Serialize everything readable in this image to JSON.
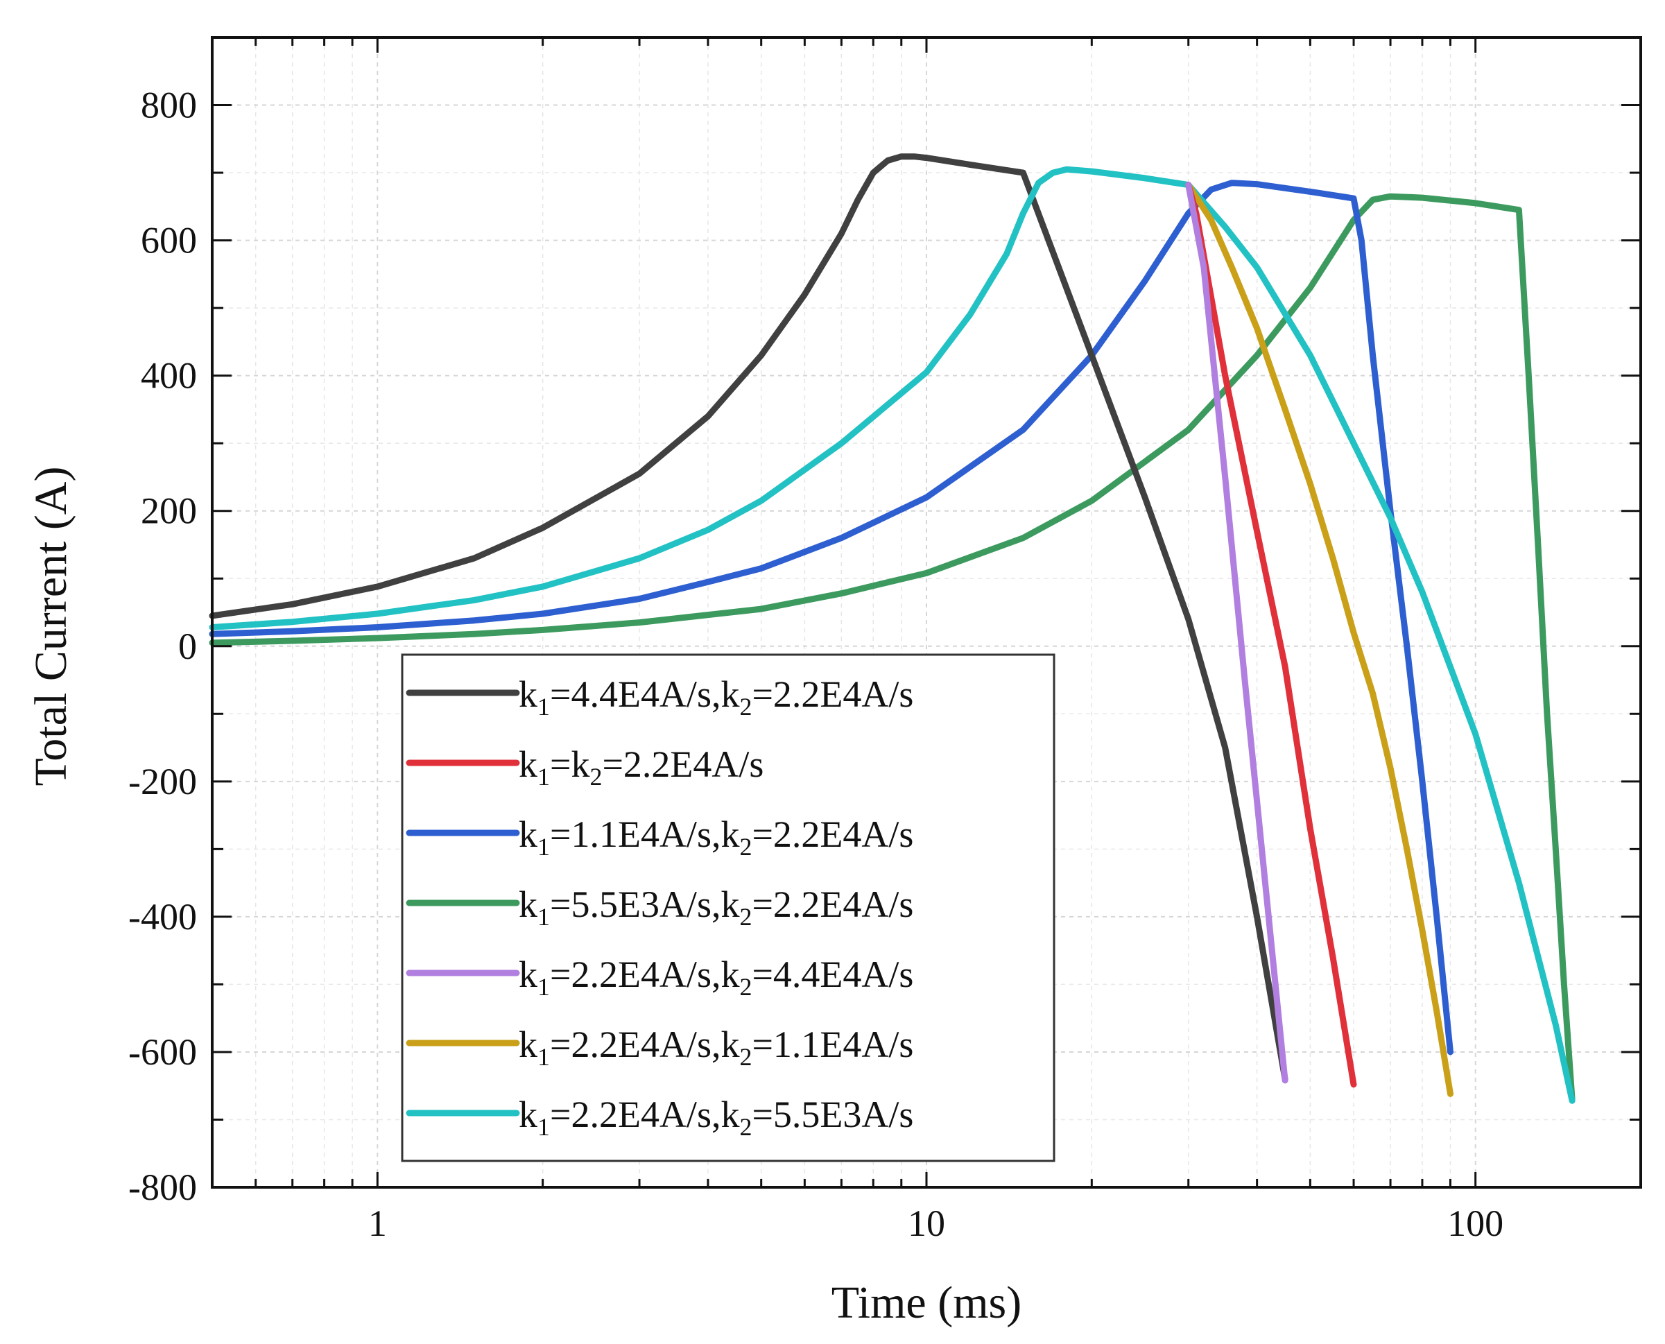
{
  "chart_data": {
    "type": "line",
    "xscale": "log",
    "xlabel": "Time (ms)",
    "ylabel": "Total Current (A)",
    "xlim": [
      0.5,
      200
    ],
    "ylim": [
      -800,
      900
    ],
    "xticks": [
      1,
      10,
      100
    ],
    "xtick_labels": [
      "1",
      "10",
      "100"
    ],
    "yticks": [
      -800,
      -600,
      -400,
      -200,
      0,
      200,
      400,
      600,
      800
    ],
    "ytick_labels": [
      "-800",
      "-600",
      "-400",
      "-200",
      "0",
      "200",
      "400",
      "600",
      "800"
    ],
    "grid": true,
    "legend_position": "lower-left",
    "series": [
      {
        "name": "k1=4.4E4A/s,k2=2.2E4A/s",
        "label_parts": [
          [
            "k",
            ""
          ],
          [
            "1",
            "sub"
          ],
          [
            "=4.4E4A/s,k",
            ""
          ],
          [
            "2",
            "sub"
          ],
          [
            "=2.2E4A/s",
            ""
          ]
        ],
        "color": "#404040",
        "x": [
          0.5,
          0.7,
          1,
          1.5,
          2,
          3,
          4,
          5,
          6,
          7,
          7.5,
          8,
          8.5,
          9,
          9.5,
          10,
          12,
          15,
          20,
          25,
          30,
          35,
          40,
          45
        ],
        "y": [
          45,
          62,
          88,
          130,
          175,
          255,
          340,
          430,
          520,
          610,
          660,
          700,
          718,
          724,
          724,
          722,
          712,
          700,
          430,
          220,
          40,
          -150,
          -400,
          -640
        ]
      },
      {
        "name": "k1=k2=2.2E4A/s",
        "label_parts": [
          [
            "k",
            ""
          ],
          [
            "1",
            "sub"
          ],
          [
            "=k",
            ""
          ],
          [
            "2",
            "sub"
          ],
          [
            "=2.2E4A/s",
            ""
          ]
        ],
        "color": "#e0303a",
        "x": [
          30,
          31,
          35,
          40,
          45,
          50,
          55,
          60
        ],
        "y": [
          682,
          640,
          400,
          170,
          -30,
          -270,
          -460,
          -648
        ]
      },
      {
        "name": "k1=1.1E4A/s,k2=2.2E4A/s",
        "label_parts": [
          [
            "k",
            ""
          ],
          [
            "1",
            "sub"
          ],
          [
            "=1.1E4A/s,k",
            ""
          ],
          [
            "2",
            "sub"
          ],
          [
            "=2.2E4A/s",
            ""
          ]
        ],
        "color": "#2e5fd0",
        "x": [
          0.5,
          0.7,
          1,
          1.5,
          2,
          3,
          4,
          5,
          7,
          10,
          15,
          20,
          25,
          30,
          33,
          36,
          40,
          50,
          60,
          62,
          65,
          70,
          75,
          80,
          85,
          90
        ],
        "y": [
          18,
          22,
          28,
          38,
          48,
          70,
          95,
          115,
          160,
          220,
          320,
          430,
          540,
          640,
          675,
          685,
          683,
          672,
          662,
          600,
          430,
          200,
          0,
          -200,
          -400,
          -600
        ]
      },
      {
        "name": "k1=5.5E3A/s,k2=2.2E4A/s",
        "label_parts": [
          [
            "k",
            ""
          ],
          [
            "1",
            "sub"
          ],
          [
            "=5.5E3A/s,k",
            ""
          ],
          [
            "2",
            "sub"
          ],
          [
            "=2.2E4A/s",
            ""
          ]
        ],
        "color": "#3c9a5f",
        "x": [
          0.5,
          0.7,
          1,
          1.5,
          2,
          3,
          5,
          7,
          10,
          15,
          20,
          30,
          40,
          50,
          60,
          65,
          70,
          80,
          100,
          120,
          125,
          130,
          135,
          140,
          145,
          150
        ],
        "y": [
          5,
          8,
          12,
          18,
          24,
          35,
          55,
          78,
          108,
          160,
          215,
          320,
          430,
          530,
          630,
          660,
          665,
          663,
          655,
          645,
          400,
          150,
          -100,
          -300,
          -500,
          -670
        ]
      },
      {
        "name": "k1=2.2E4A/s,k2=4.4E4A/s",
        "label_parts": [
          [
            "k",
            ""
          ],
          [
            "1",
            "sub"
          ],
          [
            "=2.2E4A/s,k",
            ""
          ],
          [
            "2",
            "sub"
          ],
          [
            "=4.4E4A/s",
            ""
          ]
        ],
        "color": "#b07fe0",
        "x": [
          30,
          32,
          35,
          38,
          42,
          45
        ],
        "y": [
          682,
          560,
          250,
          -50,
          -400,
          -642
        ]
      },
      {
        "name": "k1=2.2E4A/s,k2=1.1E4A/s",
        "label_parts": [
          [
            "k",
            ""
          ],
          [
            "1",
            "sub"
          ],
          [
            "=2.2E4A/s,k",
            ""
          ],
          [
            "2",
            "sub"
          ],
          [
            "=1.1E4A/s",
            ""
          ]
        ],
        "color": "#c9a018",
        "x": [
          30,
          33,
          36,
          40,
          45,
          50,
          55,
          60,
          65,
          70,
          75,
          80,
          85,
          90
        ],
        "y": [
          682,
          630,
          560,
          470,
          350,
          240,
          130,
          20,
          -70,
          -180,
          -300,
          -420,
          -540,
          -662
        ]
      },
      {
        "name": "k1=2.2E4A/s,k2=5.5E3A/s",
        "label_parts": [
          [
            "k",
            ""
          ],
          [
            "1",
            "sub"
          ],
          [
            "=2.2E4A/s,k",
            ""
          ],
          [
            "2",
            "sub"
          ],
          [
            "=5.5E3A/s",
            ""
          ]
        ],
        "color": "#22c1c3",
        "x": [
          0.5,
          0.7,
          1,
          1.5,
          2,
          3,
          4,
          5,
          7,
          10,
          12,
          14,
          15,
          16,
          17,
          18,
          20,
          25,
          30,
          35,
          40,
          50,
          60,
          70,
          80,
          100,
          120,
          140,
          150
        ],
        "y": [
          28,
          36,
          48,
          68,
          88,
          130,
          172,
          215,
          300,
          405,
          490,
          580,
          640,
          685,
          700,
          705,
          702,
          692,
          682,
          620,
          560,
          430,
          300,
          190,
          80,
          -130,
          -350,
          -560,
          -672
        ]
      }
    ]
  }
}
